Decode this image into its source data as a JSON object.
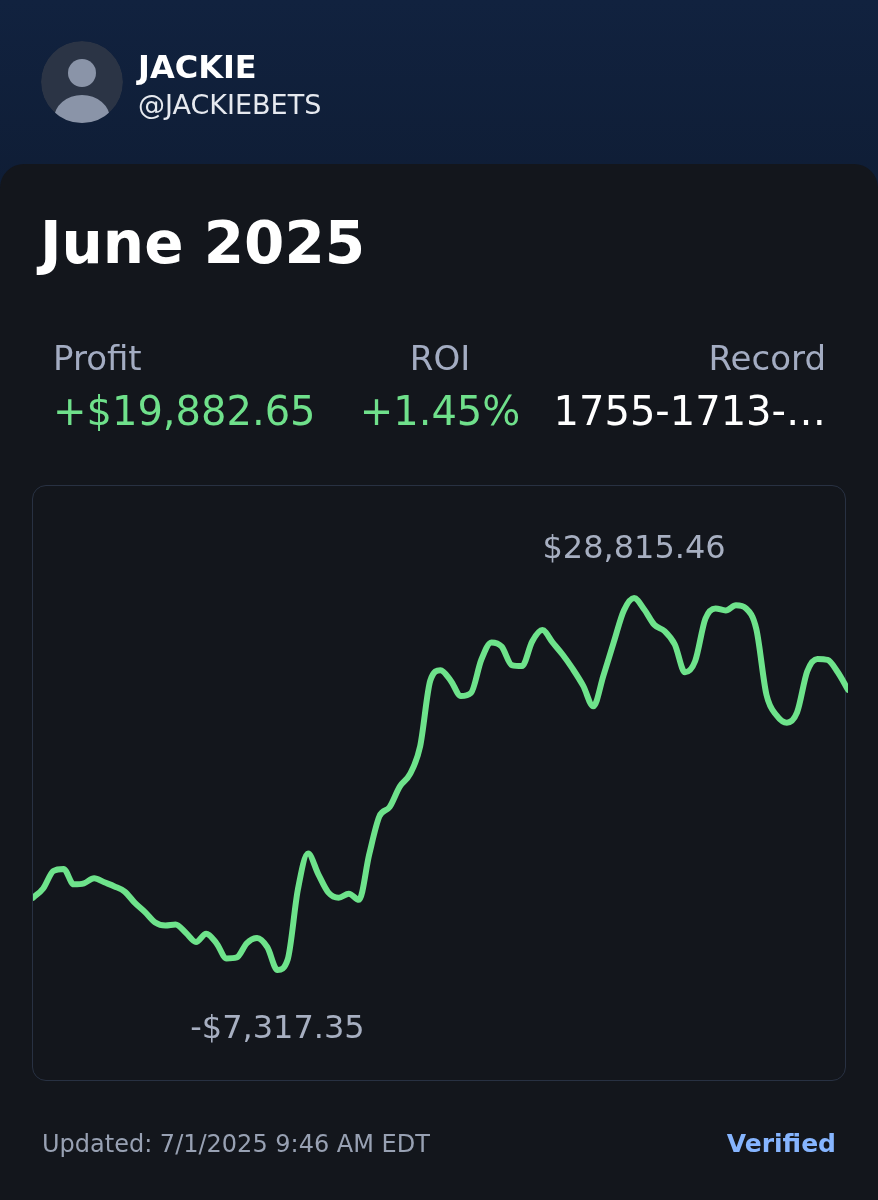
{
  "chart_data": {
    "type": "line",
    "title": "June 2025",
    "annotations": [
      "JACKIE",
      "@JACKIEBETS",
      "Profit",
      "ROI",
      "Record",
      "+$19,882.65",
      "+1.45%",
      "1755-1713-…",
      "Updated: 7/1/2025 9:46 AM EDT",
      "Verified"
    ],
    "categories": [
      null,
      null,
      null,
      null,
      null,
      null,
      null,
      null,
      null,
      null,
      null,
      null,
      null,
      null,
      null,
      null,
      null,
      null,
      null,
      null,
      null,
      null,
      null,
      null,
      null,
      null,
      null,
      null,
      null,
      null,
      null,
      null,
      null,
      null,
      null,
      null,
      null,
      null,
      null,
      null,
      null,
      null,
      null,
      null,
      null,
      null,
      null,
      null,
      null,
      null,
      null,
      null,
      null,
      null,
      null,
      null,
      null,
      null,
      null,
      null,
      null,
      null,
      null,
      null,
      null,
      null,
      null,
      null,
      null,
      null,
      null,
      null,
      null,
      null,
      null,
      null,
      null,
      null,
      null,
      null,
      null
    ],
    "values": [
      -300,
      600,
      2300,
      2500,
      1000,
      1100,
      1600,
      1200,
      800,
      300,
      -800,
      -1700,
      -2700,
      -3000,
      -2900,
      -3700,
      -4600,
      -3800,
      -4700,
      -6200,
      -6100,
      -4700,
      -4200,
      -5100,
      -7317.35,
      -6300,
      500,
      4000,
      2000,
      200,
      -300,
      100,
      -500,
      3900,
      7600,
      8500,
      10500,
      11700,
      14400,
      20800,
      21800,
      20800,
      19300,
      19600,
      22800,
      24500,
      24100,
      22300,
      22200,
      24600,
      25700,
      24500,
      23300,
      21900,
      20300,
      18300,
      21300,
      24500,
      27600,
      28815.46,
      27700,
      26200,
      25600,
      24300,
      21600,
      22700,
      26800,
      27800,
      27600,
      28100,
      27800,
      25800,
      19400,
      17400,
      16700,
      17700,
      21700,
      22900,
      22800,
      21600,
      19900
    ],
    "value_labels": [
      null,
      null,
      null,
      null,
      null,
      null,
      null,
      null,
      null,
      null,
      null,
      null,
      null,
      null,
      null,
      null,
      null,
      null,
      null,
      null,
      null,
      null,
      null,
      null,
      "-$7,317.35",
      null,
      null,
      null,
      null,
      null,
      null,
      null,
      null,
      null,
      null,
      null,
      null,
      null,
      null,
      null,
      null,
      null,
      null,
      null,
      null,
      null,
      null,
      null,
      null,
      null,
      null,
      null,
      null,
      null,
      null,
      null,
      null,
      null,
      null,
      "$28,815.46",
      null,
      null,
      null,
      null,
      null,
      null,
      null,
      null,
      null,
      null,
      null,
      null,
      null,
      null,
      null,
      null,
      null,
      null,
      null,
      null,
      null
    ],
    "color": "#6ee38b",
    "tick_labels": false
  }
}
